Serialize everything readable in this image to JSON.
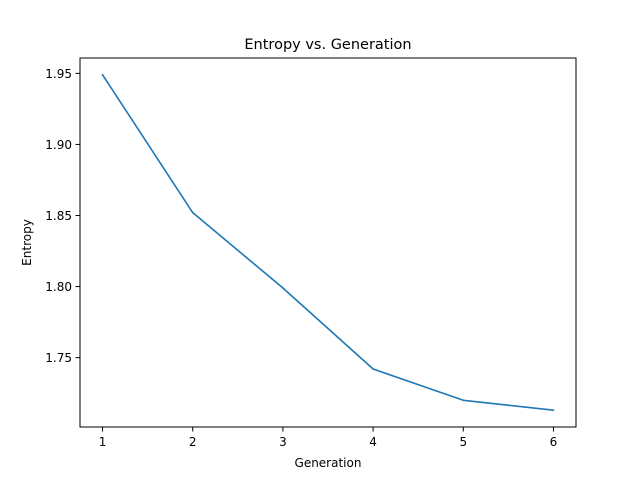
{
  "chart_data": {
    "type": "line",
    "title": "Entropy vs. Generation",
    "xlabel": "Generation",
    "ylabel": "Entropy",
    "x": [
      1,
      2,
      3,
      4,
      5,
      6
    ],
    "series": [
      {
        "values": [
          1.949,
          1.852,
          1.799,
          1.742,
          1.72,
          1.713
        ],
        "color": "#1f77b4"
      }
    ],
    "xticks": [
      1,
      2,
      3,
      4,
      5,
      6
    ],
    "yticks": [
      1.75,
      1.8,
      1.85,
      1.9,
      1.95
    ],
    "ytick_labels": [
      "1.75",
      "1.80",
      "1.85",
      "1.90",
      "1.95"
    ],
    "xlim": [
      0.75,
      6.25
    ],
    "ylim": [
      1.7012,
      1.9608
    ],
    "grid": false,
    "legend": "none"
  }
}
